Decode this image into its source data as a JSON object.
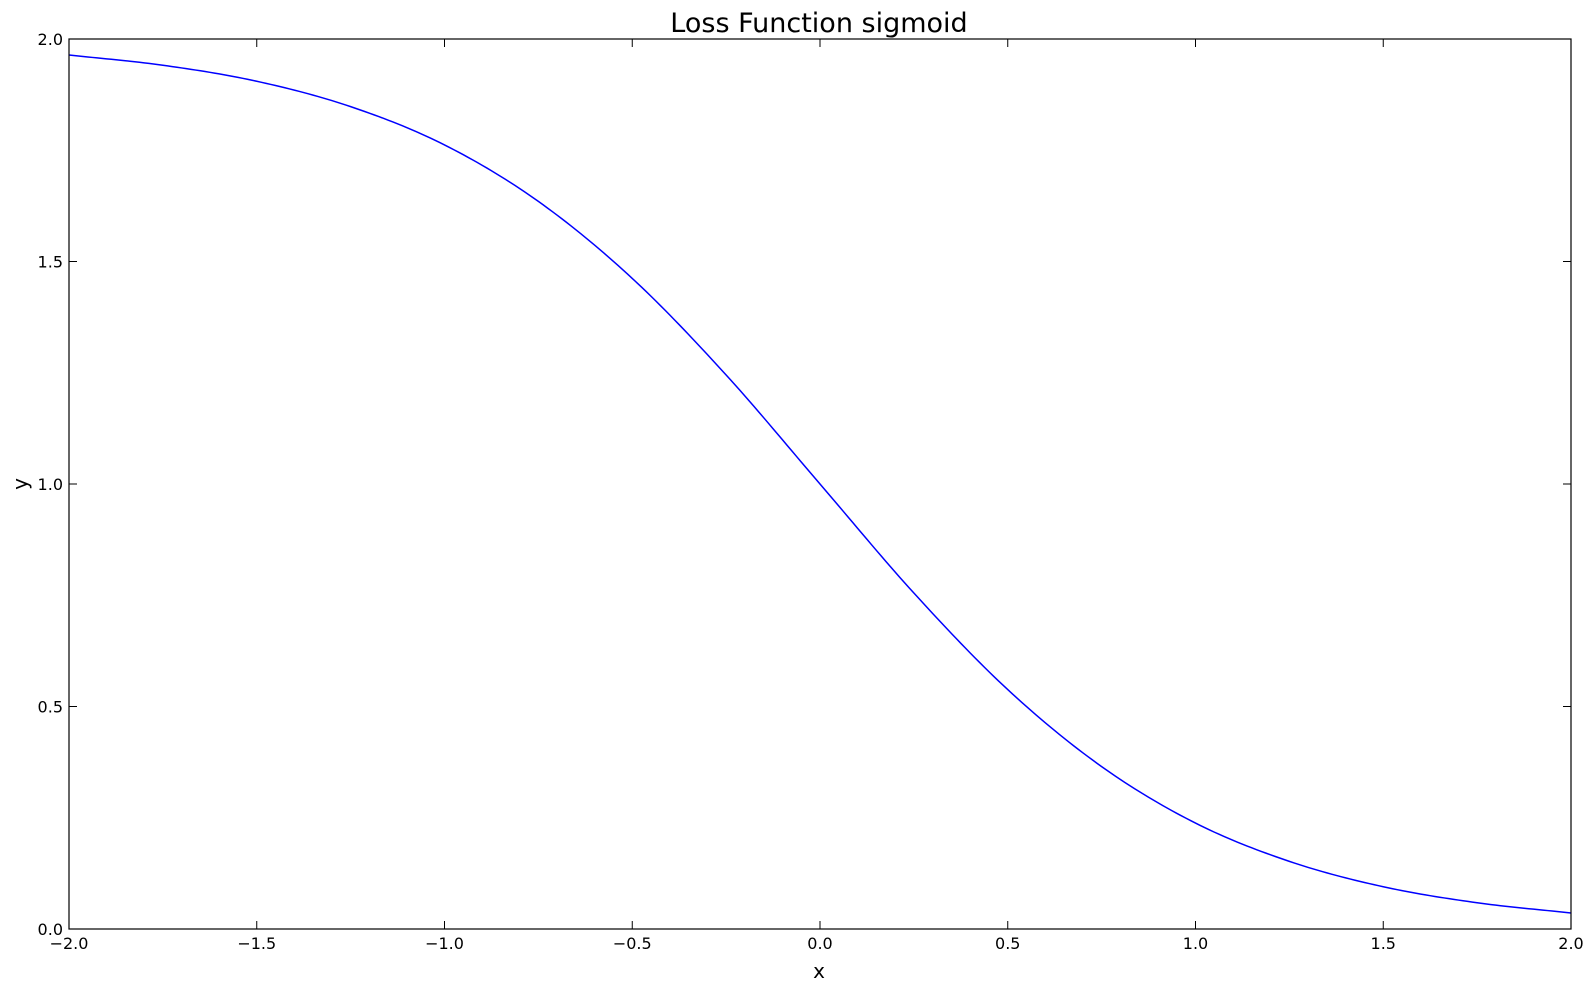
{
  "chart_data": {
    "type": "line",
    "title": "Loss Function sigmoid",
    "xlabel": "x",
    "ylabel": "y",
    "xlim": [
      -2.0,
      2.0
    ],
    "ylim": [
      0.0,
      2.0
    ],
    "grid": false,
    "x_ticks": [
      -2.0,
      -1.5,
      -1.0,
      -0.5,
      0.0,
      0.5,
      1.0,
      1.5,
      2.0
    ],
    "x_tick_labels": [
      "−2.0",
      "−1.5",
      "−1.0",
      "−0.5",
      "0.0",
      "0.5",
      "1.0",
      "1.5",
      "2.0"
    ],
    "y_ticks": [
      0.0,
      0.5,
      1.0,
      1.5,
      2.0
    ],
    "y_tick_labels": [
      "0.0",
      "0.5",
      "1.0",
      "1.5",
      "2.0"
    ],
    "series": [
      {
        "color": "#0000ff",
        "x": [
          -2.0,
          -1.75,
          -1.5,
          -1.25,
          -1.0,
          -0.75,
          -0.5,
          -0.25,
          0.0,
          0.25,
          0.5,
          0.75,
          1.0,
          1.25,
          1.5,
          1.75,
          2.0
        ],
        "y": [
          1.964,
          1.941,
          1.905,
          1.848,
          1.762,
          1.635,
          1.462,
          1.245,
          1.0,
          0.755,
          0.538,
          0.365,
          0.238,
          0.152,
          0.095,
          0.059,
          0.036
        ]
      }
    ]
  }
}
